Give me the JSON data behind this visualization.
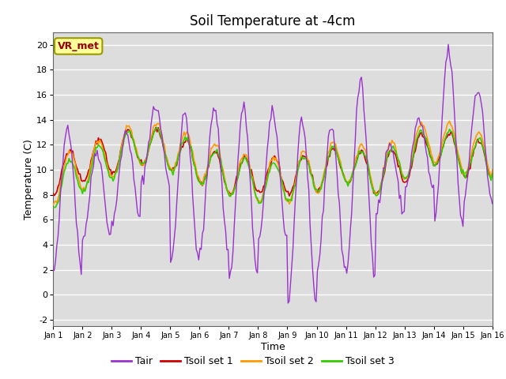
{
  "title": "Soil Temperature at -4cm",
  "xlabel": "Time",
  "ylabel": "Temperature (C)",
  "ylim": [
    -2.5,
    21
  ],
  "xlim": [
    0,
    15
  ],
  "xtick_labels": [
    "Jan 1",
    "Jan 2",
    "Jan 3",
    "Jan 4",
    "Jan 5",
    "Jan 6",
    "Jan 7",
    "Jan 8",
    "Jan 9",
    "Jan 10",
    "Jan 11",
    "Jan 12",
    "Jan 13",
    "Jan 14",
    "Jan 15",
    "Jan 16"
  ],
  "ytick_labels": [
    "-2",
    "0",
    "2",
    "4",
    "6",
    "8",
    "10",
    "12",
    "14",
    "16",
    "18",
    "20"
  ],
  "ytick_values": [
    -2,
    0,
    2,
    4,
    6,
    8,
    10,
    12,
    14,
    16,
    18,
    20
  ],
  "legend_labels": [
    "Tair",
    "Tsoil set 1",
    "Tsoil set 2",
    "Tsoil set 3"
  ],
  "legend_colors": [
    "#9933cc",
    "#cc0000",
    "#ff9900",
    "#33cc00"
  ],
  "annotation_text": "VR_met",
  "annotation_color": "#990000",
  "annotation_bg": "#ffff99",
  "annotation_edge": "#999900",
  "fig_bg_color": "#ffffff",
  "plot_bg_color": "#dddddd",
  "grid_color": "#ffffff",
  "title_fontsize": 12,
  "label_fontsize": 9,
  "tick_fontsize": 8
}
